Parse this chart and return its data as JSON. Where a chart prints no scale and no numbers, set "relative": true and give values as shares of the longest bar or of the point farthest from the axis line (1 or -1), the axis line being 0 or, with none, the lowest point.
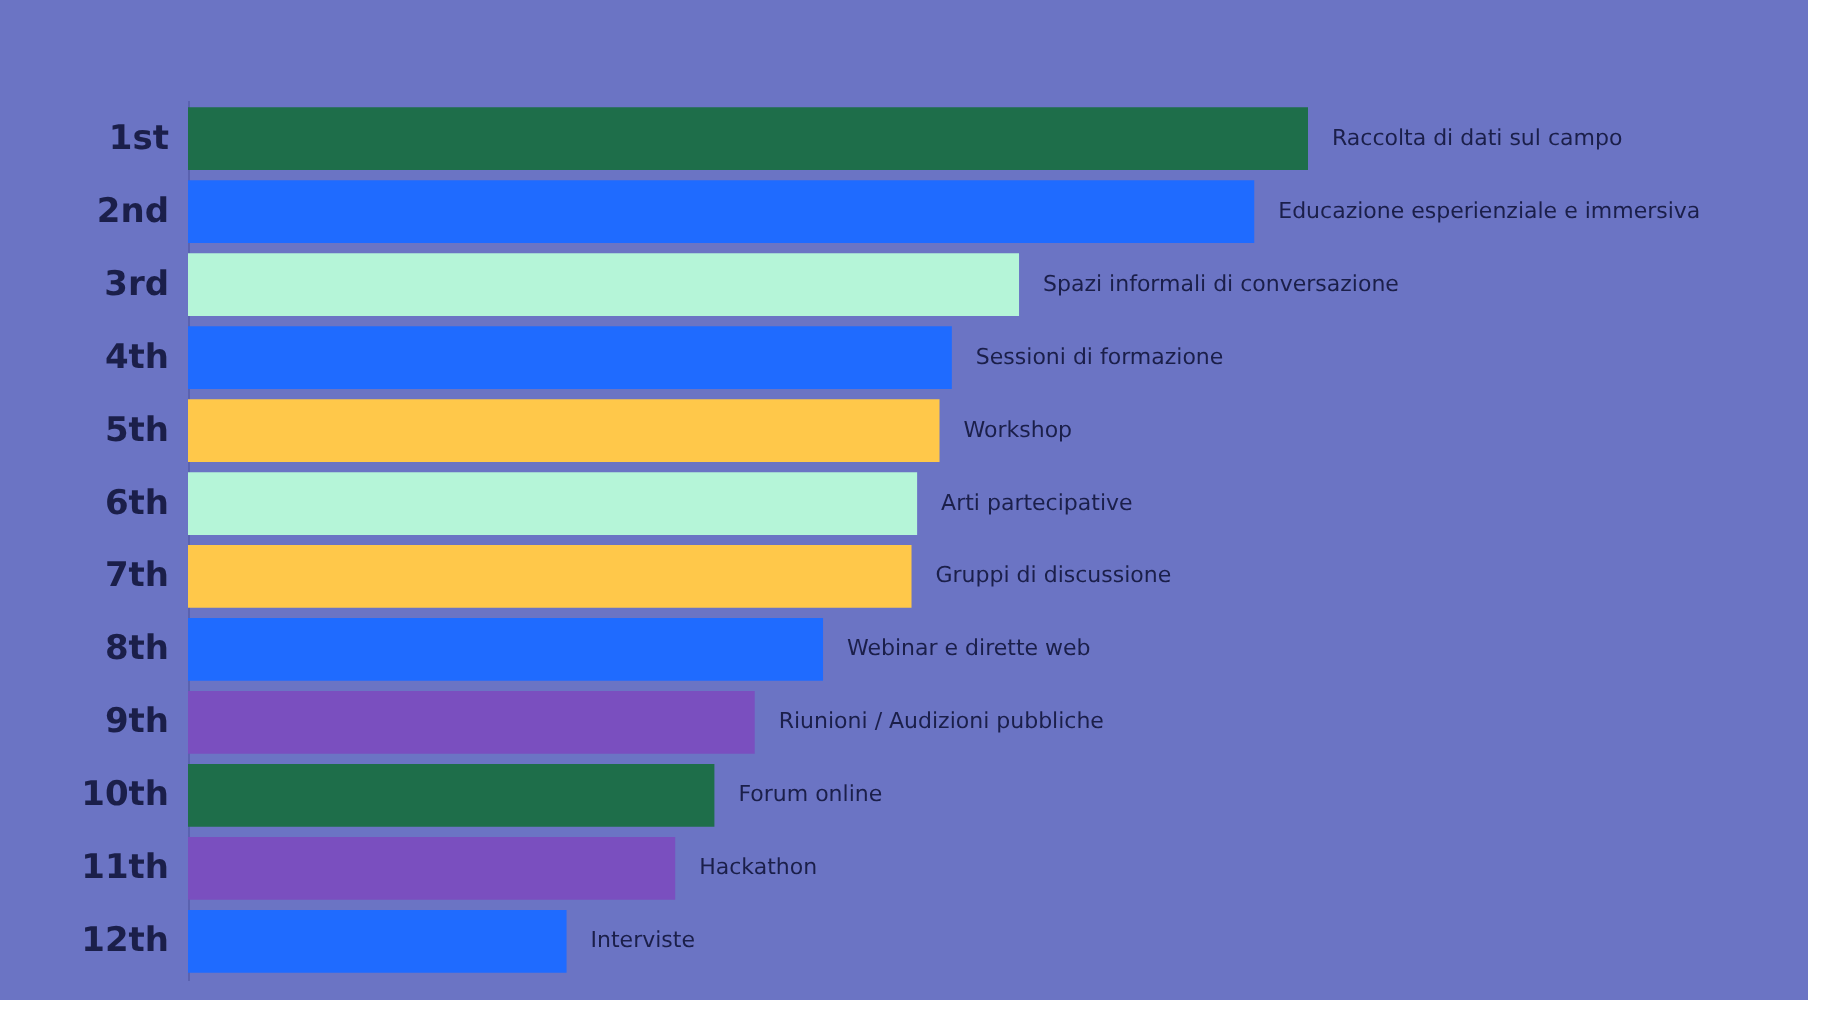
{
  "chart_data": {
    "type": "bar",
    "orientation": "horizontal",
    "categories": [
      "1st",
      "2nd",
      "3rd",
      "4th",
      "5th",
      "6th",
      "7th",
      "8th",
      "9th",
      "10th",
      "11th",
      "12th"
    ],
    "values": [
      1,
      0.952,
      0.742,
      0.682,
      0.671,
      0.651,
      0.646,
      0.567,
      0.506,
      0.47,
      0.435,
      0.338
    ],
    "colors": [
      "#1e6e4a",
      "#1f6bff",
      "#b5f5d8",
      "#1f6bff",
      "#ffc84a",
      "#b5f5d8",
      "#ffc84a",
      "#1f6bff",
      "#7a4fbf",
      "#1e6e4a",
      "#7a4fbf",
      "#1f6bff"
    ],
    "annotations": [
      {
        "text": "Raccolta di dati sul campo",
        "x": 1,
        "y": "1st"
      },
      {
        "text": "Educazione esperienziale e immersiva",
        "x": 0.952,
        "y": "2nd"
      },
      {
        "text": "Spazi informali di conversazione",
        "x": 0.742,
        "y": "3rd"
      },
      {
        "text": "Sessioni di formazione",
        "x": 0.682,
        "y": "4th"
      },
      {
        "text": "Workshop",
        "x": 0.671,
        "y": "5th"
      },
      {
        "text": "Arti partecipative",
        "x": 0.651,
        "y": "6th"
      },
      {
        "text": "Gruppi di discussione",
        "x": 0.646,
        "y": "7th"
      },
      {
        "text": "Webinar e dirette web",
        "x": 0.567,
        "y": "8th"
      },
      {
        "text": "Riunioni / Audizioni pubbliche",
        "x": 0.506,
        "y": "9th"
      },
      {
        "text": "Forum online",
        "x": 0.47,
        "y": "10th"
      },
      {
        "text": "Hackathon",
        "x": 0.435,
        "y": "11th"
      },
      {
        "text": "Interviste",
        "x": 0.338,
        "y": "12th"
      }
    ],
    "relative": true
  }
}
